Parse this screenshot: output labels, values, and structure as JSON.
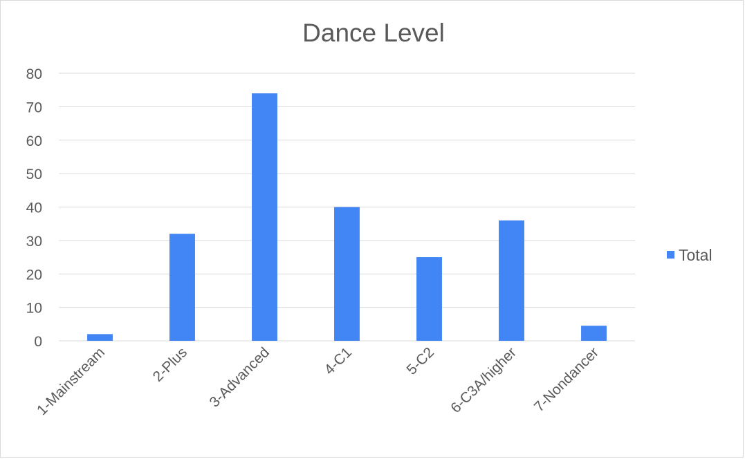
{
  "chart_data": {
    "type": "bar",
    "title": "Dance Level",
    "xlabel": "",
    "ylabel": "",
    "categories": [
      "1-Mainstream",
      "2-Plus",
      "3-Advanced",
      "4-C1",
      "5-C2",
      "6-C3A/higher",
      "7-Nondancer"
    ],
    "series": [
      {
        "name": "Total",
        "values": [
          2,
          32,
          74,
          40,
          25,
          36,
          4.5
        ]
      }
    ],
    "ylim": [
      0,
      80
    ],
    "yticks": [
      0,
      10,
      20,
      30,
      40,
      50,
      60,
      70,
      80
    ],
    "grid": true,
    "legend": "right",
    "colors": {
      "bar": "#4285f4",
      "grid": "#d9d9d9",
      "text": "#595959"
    }
  }
}
